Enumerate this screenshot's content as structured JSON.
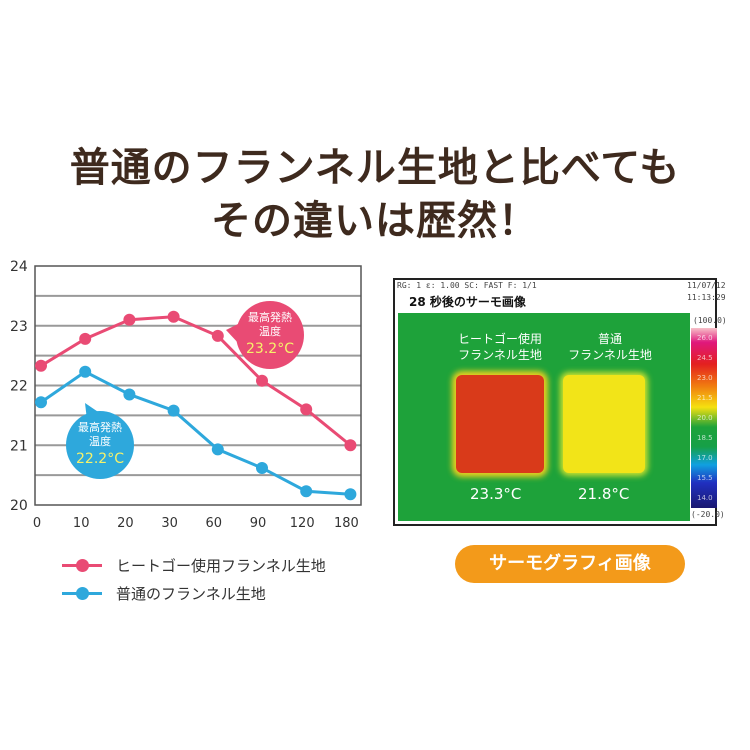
{
  "headline": {
    "line1": "普通のフランネル生地と比べても",
    "line2": "その違いは歴然！"
  },
  "chart_data": {
    "type": "line",
    "categories": [
      "0",
      "10",
      "20",
      "30",
      "60",
      "90",
      "120",
      "180"
    ],
    "ylim": [
      20,
      24
    ],
    "yticks": [
      "20",
      "21",
      "22",
      "23",
      "24"
    ],
    "grid": true,
    "legend_position": "bottom",
    "series": [
      {
        "name": "ヒートゴー使用フランネル生地",
        "color": "#e94b74",
        "values": [
          22.33,
          22.78,
          23.1,
          23.15,
          22.83,
          22.08,
          21.6,
          21.0
        ]
      },
      {
        "name": "普通のフランネル生地",
        "color": "#2ea8dc",
        "values": [
          21.72,
          22.23,
          21.85,
          21.58,
          20.93,
          20.62,
          20.23,
          20.18
        ]
      }
    ],
    "annotations": [
      {
        "series": 0,
        "label": "最高発熱",
        "label2": "温度",
        "value": "23.2°C"
      },
      {
        "series": 1,
        "label": "最高発熱",
        "label2": "温度",
        "value": "22.2°C"
      }
    ]
  },
  "thermo": {
    "meta_line": "RG: 1   ε: 1.00   SC: FAST   F: 1/1",
    "date": "11/07/12",
    "time": "11:13:29",
    "title": "28 秒後のサーモ画像",
    "scale_max": "(100.0)",
    "scale_min": "(-20.0)",
    "scale_labels": [
      "26.0",
      "24.5",
      "23.0",
      "21.5",
      "20.0",
      "18.5",
      "17.0",
      "15.5",
      "14.0"
    ],
    "left_label1": "ヒートゴー使用",
    "left_label2": "フランネル生地",
    "left_temp": "23.3°C",
    "right_label1": "普通",
    "right_label2": "フランネル生地",
    "right_temp": "21.8°C"
  },
  "badge": "サーモグラフィ画像"
}
